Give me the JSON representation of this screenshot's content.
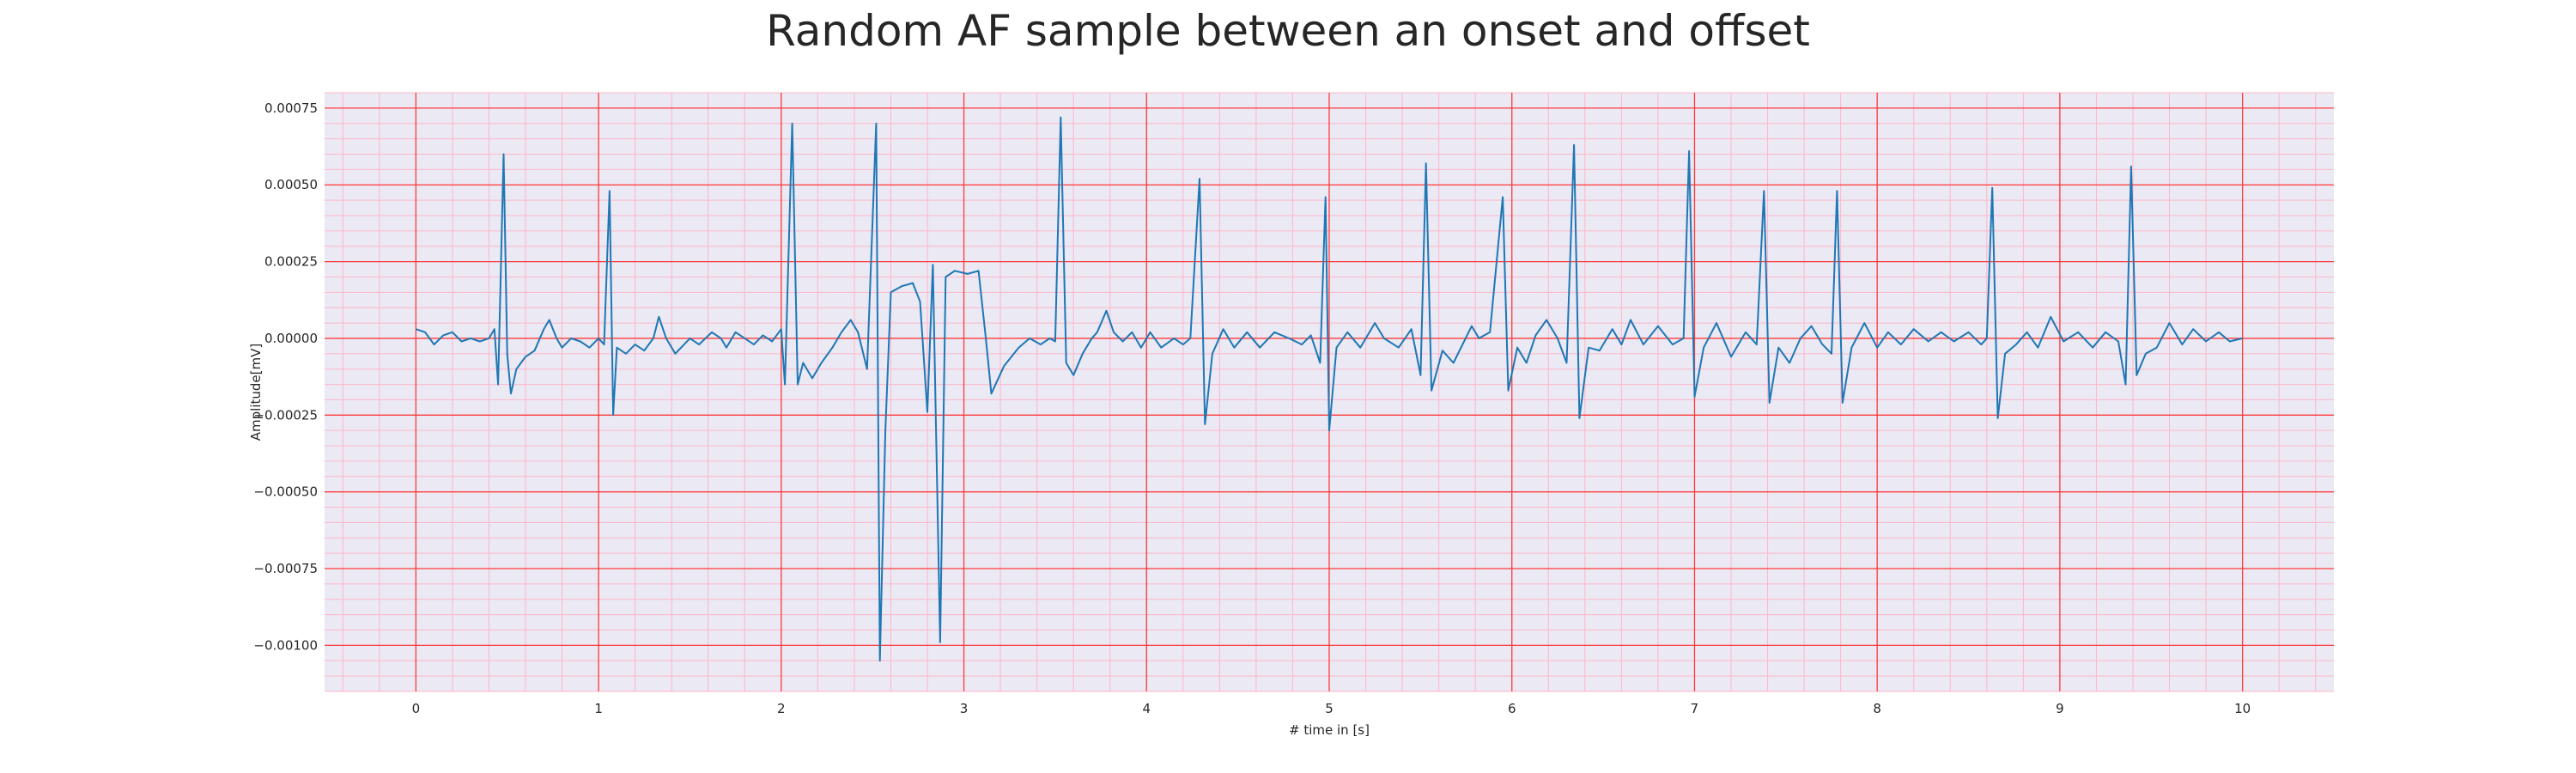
{
  "chart_data": {
    "type": "line",
    "title": "Random AF sample between an onset and offset",
    "xlabel": "# time in [s]",
    "ylabel": "Amplitude[mV]",
    "xlim": [
      -0.5,
      10.5
    ],
    "ylim": [
      -0.00115,
      0.0008
    ],
    "xticks": [
      0,
      1,
      2,
      3,
      4,
      5,
      6,
      7,
      8,
      9,
      10
    ],
    "xtick_labels": [
      "0",
      "1",
      "2",
      "3",
      "4",
      "5",
      "6",
      "7",
      "8",
      "9",
      "10"
    ],
    "yticks": [
      0.00075,
      0.0005,
      0.00025,
      0.0,
      -0.00025,
      -0.0005,
      -0.00075,
      -0.001
    ],
    "ytick_labels": [
      "0.00075",
      "0.00050",
      "0.00025",
      "0.00000",
      "−0.00025",
      "−0.00050",
      "−0.00075",
      "−0.00100"
    ],
    "grid": true,
    "grid_major_color": "#ff3b3b",
    "grid_minor_color": "#ffb6c8",
    "background_color": "#eae9f4",
    "line_color": "#1f77b4",
    "series": [
      {
        "values": [
          [
            0.0,
            3e-05
          ],
          [
            0.05,
            2e-05
          ],
          [
            0.1,
            -2e-05
          ],
          [
            0.15,
            1e-05
          ],
          [
            0.2,
            2e-05
          ],
          [
            0.25,
            -1e-05
          ],
          [
            0.3,
            0.0
          ],
          [
            0.35,
            -1e-05
          ],
          [
            0.4,
            0.0
          ],
          [
            0.43,
            3e-05
          ],
          [
            0.45,
            -0.00015
          ],
          [
            0.48,
            0.0006
          ],
          [
            0.5,
            -5e-05
          ],
          [
            0.52,
            -0.00018
          ],
          [
            0.55,
            -0.0001
          ],
          [
            0.6,
            -6e-05
          ],
          [
            0.65,
            -4e-05
          ],
          [
            0.7,
            3e-05
          ],
          [
            0.73,
            6e-05
          ],
          [
            0.77,
            0.0
          ],
          [
            0.8,
            -3e-05
          ],
          [
            0.85,
            0.0
          ],
          [
            0.9,
            -1e-05
          ],
          [
            0.95,
            -3e-05
          ],
          [
            1.0,
            0.0
          ],
          [
            1.03,
            -2e-05
          ],
          [
            1.06,
            0.00048
          ],
          [
            1.08,
            -0.00025
          ],
          [
            1.1,
            -3e-05
          ],
          [
            1.15,
            -5e-05
          ],
          [
            1.2,
            -2e-05
          ],
          [
            1.25,
            -4e-05
          ],
          [
            1.3,
            0.0
          ],
          [
            1.33,
            7e-05
          ],
          [
            1.37,
            0.0
          ],
          [
            1.42,
            -5e-05
          ],
          [
            1.5,
            0.0
          ],
          [
            1.55,
            -2e-05
          ],
          [
            1.62,
            2e-05
          ],
          [
            1.67,
            0.0
          ],
          [
            1.7,
            -3e-05
          ],
          [
            1.75,
            2e-05
          ],
          [
            1.8,
            0.0
          ],
          [
            1.85,
            -2e-05
          ],
          [
            1.9,
            1e-05
          ],
          [
            1.95,
            -1e-05
          ],
          [
            2.0,
            3e-05
          ],
          [
            2.02,
            -0.00015
          ],
          [
            2.06,
            0.0007
          ],
          [
            2.09,
            -0.00015
          ],
          [
            2.12,
            -8e-05
          ],
          [
            2.17,
            -0.00013
          ],
          [
            2.22,
            -8e-05
          ],
          [
            2.28,
            -3e-05
          ],
          [
            2.33,
            2e-05
          ],
          [
            2.38,
            6e-05
          ],
          [
            2.42,
            2e-05
          ],
          [
            2.47,
            -0.0001
          ],
          [
            2.52,
            0.0007
          ],
          [
            2.54,
            -0.00105
          ],
          [
            2.57,
            -0.0003
          ],
          [
            2.6,
            0.00015
          ],
          [
            2.66,
            0.00017
          ],
          [
            2.72,
            0.00018
          ],
          [
            2.76,
            0.00012
          ],
          [
            2.8,
            -0.00024
          ],
          [
            2.83,
            0.00024
          ],
          [
            2.87,
            -0.00099
          ],
          [
            2.9,
            0.0002
          ],
          [
            2.95,
            0.00022
          ],
          [
            3.02,
            0.00021
          ],
          [
            3.08,
            0.00022
          ],
          [
            3.12,
            0.0
          ],
          [
            3.15,
            -0.00018
          ],
          [
            3.22,
            -9e-05
          ],
          [
            3.3,
            -3e-05
          ],
          [
            3.36,
            0.0
          ],
          [
            3.42,
            -2e-05
          ],
          [
            3.47,
            0.0
          ],
          [
            3.5,
            -1e-05
          ],
          [
            3.53,
            0.00072
          ],
          [
            3.56,
            -8e-05
          ],
          [
            3.6,
            -0.00012
          ],
          [
            3.65,
            -5e-05
          ],
          [
            3.7,
            0.0
          ],
          [
            3.73,
            2e-05
          ],
          [
            3.78,
            9e-05
          ],
          [
            3.82,
            2e-05
          ],
          [
            3.87,
            -1e-05
          ],
          [
            3.92,
            2e-05
          ],
          [
            3.97,
            -3e-05
          ],
          [
            4.02,
            2e-05
          ],
          [
            4.08,
            -3e-05
          ],
          [
            4.15,
            0.0
          ],
          [
            4.2,
            -2e-05
          ],
          [
            4.24,
            0.0
          ],
          [
            4.29,
            0.00052
          ],
          [
            4.32,
            -0.00028
          ],
          [
            4.36,
            -5e-05
          ],
          [
            4.42,
            3e-05
          ],
          [
            4.48,
            -3e-05
          ],
          [
            4.55,
            2e-05
          ],
          [
            4.62,
            -3e-05
          ],
          [
            4.7,
            2e-05
          ],
          [
            4.78,
            0.0
          ],
          [
            4.85,
            -2e-05
          ],
          [
            4.9,
            1e-05
          ],
          [
            4.95,
            -8e-05
          ],
          [
            4.98,
            0.00046
          ],
          [
            5.0,
            -0.0003
          ],
          [
            5.04,
            -3e-05
          ],
          [
            5.1,
            2e-05
          ],
          [
            5.17,
            -3e-05
          ],
          [
            5.25,
            5e-05
          ],
          [
            5.3,
            0.0
          ],
          [
            5.38,
            -3e-05
          ],
          [
            5.45,
            3e-05
          ],
          [
            5.5,
            -0.00012
          ],
          [
            5.53,
            0.00057
          ],
          [
            5.56,
            -0.00017
          ],
          [
            5.62,
            -4e-05
          ],
          [
            5.68,
            -8e-05
          ],
          [
            5.73,
            -2e-05
          ],
          [
            5.78,
            4e-05
          ],
          [
            5.82,
            0.0
          ],
          [
            5.88,
            2e-05
          ],
          [
            5.95,
            0.00046
          ],
          [
            5.98,
            -0.00017
          ],
          [
            6.03,
            -3e-05
          ],
          [
            6.08,
            -8e-05
          ],
          [
            6.13,
            1e-05
          ],
          [
            6.19,
            6e-05
          ],
          [
            6.25,
            0.0
          ],
          [
            6.3,
            -8e-05
          ],
          [
            6.34,
            0.00063
          ],
          [
            6.37,
            -0.00026
          ],
          [
            6.42,
            -3e-05
          ],
          [
            6.48,
            -4e-05
          ],
          [
            6.55,
            3e-05
          ],
          [
            6.6,
            -2e-05
          ],
          [
            6.65,
            6e-05
          ],
          [
            6.72,
            -2e-05
          ],
          [
            6.8,
            4e-05
          ],
          [
            6.88,
            -2e-05
          ],
          [
            6.94,
            0.0
          ],
          [
            6.97,
            0.00061
          ],
          [
            7.0,
            -0.00019
          ],
          [
            7.05,
            -3e-05
          ],
          [
            7.12,
            5e-05
          ],
          [
            7.2,
            -6e-05
          ],
          [
            7.28,
            2e-05
          ],
          [
            7.34,
            -2e-05
          ],
          [
            7.38,
            0.00048
          ],
          [
            7.41,
            -0.00021
          ],
          [
            7.46,
            -3e-05
          ],
          [
            7.52,
            -8e-05
          ],
          [
            7.58,
            0.0
          ],
          [
            7.64,
            4e-05
          ],
          [
            7.7,
            -2e-05
          ],
          [
            7.75,
            -5e-05
          ],
          [
            7.78,
            0.00048
          ],
          [
            7.81,
            -0.00021
          ],
          [
            7.86,
            -3e-05
          ],
          [
            7.93,
            5e-05
          ],
          [
            8.0,
            -3e-05
          ],
          [
            8.06,
            2e-05
          ],
          [
            8.13,
            -2e-05
          ],
          [
            8.2,
            3e-05
          ],
          [
            8.28,
            -1e-05
          ],
          [
            8.35,
            2e-05
          ],
          [
            8.42,
            -1e-05
          ],
          [
            8.5,
            2e-05
          ],
          [
            8.57,
            -2e-05
          ],
          [
            8.6,
            0.0
          ],
          [
            8.63,
            0.00049
          ],
          [
            8.66,
            -0.00026
          ],
          [
            8.7,
            -5e-05
          ],
          [
            8.76,
            -2e-05
          ],
          [
            8.82,
            2e-05
          ],
          [
            8.88,
            -3e-05
          ],
          [
            8.95,
            7e-05
          ],
          [
            9.02,
            -1e-05
          ],
          [
            9.1,
            2e-05
          ],
          [
            9.18,
            -3e-05
          ],
          [
            9.25,
            2e-05
          ],
          [
            9.32,
            -1e-05
          ],
          [
            9.36,
            -0.00015
          ],
          [
            9.39,
            0.00056
          ],
          [
            9.42,
            -0.00012
          ],
          [
            9.47,
            -5e-05
          ],
          [
            9.53,
            -3e-05
          ],
          [
            9.6,
            5e-05
          ],
          [
            9.67,
            -2e-05
          ],
          [
            9.73,
            3e-05
          ],
          [
            9.8,
            -1e-05
          ],
          [
            9.87,
            2e-05
          ],
          [
            9.93,
            -1e-05
          ],
          [
            10.0,
            0.0
          ]
        ]
      }
    ]
  }
}
